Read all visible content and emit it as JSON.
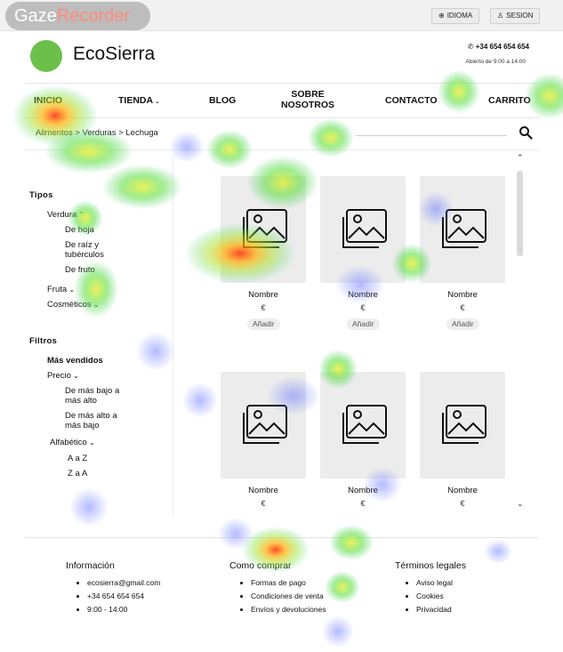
{
  "overlay": {
    "brand_part1": "Gaze",
    "brand_part2": "Recorder"
  },
  "topbar": {
    "language_label": "IDIOMA",
    "session_label": "SESION"
  },
  "header": {
    "brand": "EcoSierra",
    "phone": "+34 654 654 654",
    "hours": "Abierto de 9:00 a 14:00",
    "logo_color": "#6cc04a"
  },
  "nav": {
    "items": [
      {
        "label": "INICIO"
      },
      {
        "label": "TIENDA"
      },
      {
        "label": "BLOG"
      },
      {
        "label": "SOBRE\nNOSOTROS"
      },
      {
        "label": "CONTACTO"
      },
      {
        "label": "CARRITO"
      }
    ]
  },
  "breadcrumb": "Alimentos > Verduras > Lechuga",
  "sidebar": {
    "tipos_heading": "Tipos",
    "verdura": "Verdura",
    "de_hoja": "De hoja",
    "de_raiz": "De raíz y tubérculos",
    "de_fruto": "De fruto",
    "fruta": "Fruta",
    "cosmeticos": "Cosméticos",
    "filtros_heading": "Filtros",
    "mas_vendidos": "Más vendidos",
    "precio": "Precio",
    "bajo_alto": "De más bajo a más alto",
    "alto_bajo": "De más alto a más bajo",
    "alfabetico": "Alfabético",
    "a_z": "A a Z",
    "z_a": "Z a A"
  },
  "products": {
    "row1": [
      {
        "name": "Nombre",
        "price": "€",
        "add": "Añadir"
      },
      {
        "name": "Nombre",
        "price": "€",
        "add": "Añadir"
      },
      {
        "name": "Nombre",
        "price": "€",
        "add": "Añadir"
      }
    ],
    "row2": [
      {
        "name": "Nombre",
        "price": "€"
      },
      {
        "name": "Nombre",
        "price": "€"
      },
      {
        "name": "Nombre",
        "price": "€"
      }
    ]
  },
  "footer": {
    "info_title": "Información",
    "info_items": [
      "ecosierra@gmail.com",
      "+34 654 654 654",
      "9:00 - 14:00"
    ],
    "buy_title": "Como comprar",
    "buy_items": [
      "Formas de pago",
      "Condiciones de venta",
      "Envíos y devoluciones"
    ],
    "legal_title": "Términos legales",
    "legal_items": [
      "Aviso legal",
      "Cookies",
      "Privacidad"
    ]
  }
}
